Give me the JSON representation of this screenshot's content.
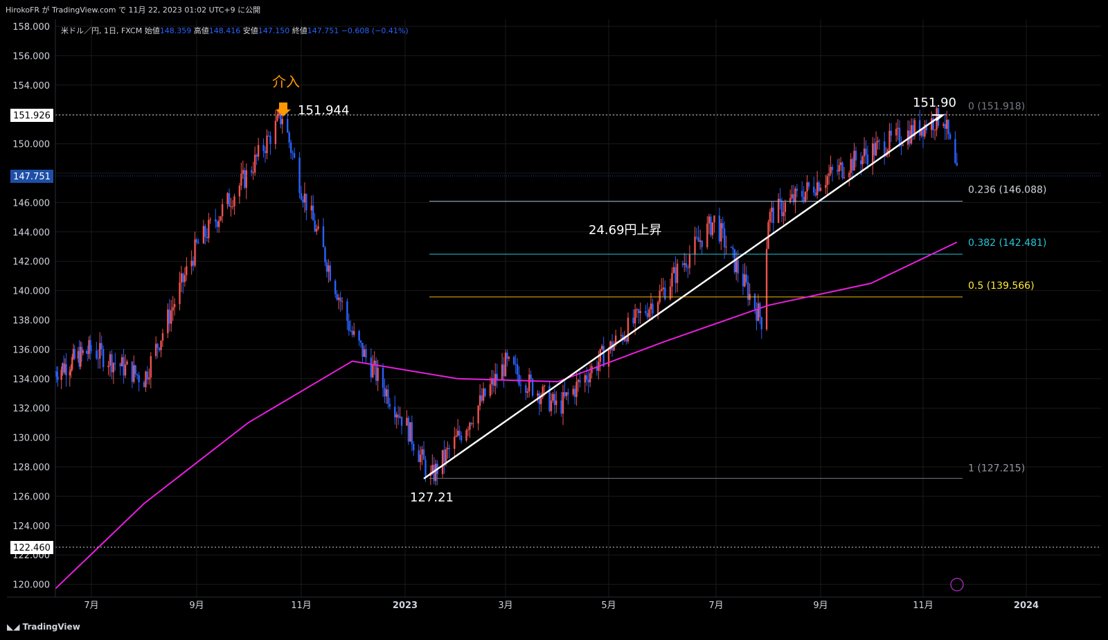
{
  "header": {
    "attribution": "HirokoFR が TradingView.com で 11月 22, 2023 01:02 UTC+9 に公開"
  },
  "legend": {
    "symbol": "米ドル／円, 1日, FXCM",
    "open_label": "始値",
    "open": "148.359",
    "high_label": "高値",
    "high": "148.416",
    "low_label": "安値",
    "low": "147.150",
    "close_label": "終値",
    "close": "147.751",
    "change": "−0.608 (−0.41%)"
  },
  "footer": {
    "brand": "TradingView"
  },
  "colors": {
    "up": "#ef5350",
    "down": "#2962ff",
    "ma": "#e91fe0",
    "fib_236": "#9ab4d4",
    "fib_382": "#26c6da",
    "fib_05": "#f0b90b",
    "fib_1": "#787b86",
    "last_price": "#1e4fa8",
    "annotation_orange": "#ff9800"
  },
  "chart_data": {
    "type": "line",
    "title": "米ドル／円, 1日, FXCM",
    "y_ticks": [
      "158.000",
      "156.000",
      "154.000",
      "152.000",
      "150.000",
      "148.000",
      "146.000",
      "144.000",
      "142.000",
      "140.000",
      "138.000",
      "136.000",
      "134.000",
      "132.000",
      "130.000",
      "128.000",
      "126.000",
      "124.000",
      "122.000",
      "120.000"
    ],
    "ylim": [
      119.5,
      158.5
    ],
    "x_ticks": [
      "7月",
      "9月",
      "11月",
      "2023",
      "3月",
      "5月",
      "7月",
      "9月",
      "11月",
      "2024"
    ],
    "price_labels": {
      "hline_top": "151.926",
      "last": "147.751",
      "hline_bottom": "122.460"
    },
    "series": [
      {
        "name": "",
        "x": [
          "2022-06",
          "2022-07",
          "2022-08",
          "2022-09",
          "2022-10",
          "2022-10-21",
          "2022-11",
          "2022-12",
          "2023-01",
          "2023-01-16",
          "2023-02",
          "2023-03",
          "2023-04",
          "2023-05",
          "2023-06",
          "2023-06-30",
          "2023-07-28",
          "2023-08",
          "2023-09",
          "2023-10",
          "2023-11-13",
          "2023-11-21"
        ],
        "values": [
          134.5,
          136,
          134,
          143,
          148,
          151.94,
          147,
          137,
          131,
          127.21,
          130,
          135,
          132,
          136,
          140,
          144.8,
          138,
          145,
          147.5,
          149.5,
          151.9,
          147.75
        ]
      },
      {
        "name": "",
        "x": [
          "2022-06",
          "2022-08",
          "2022-10",
          "2022-12",
          "2023-02",
          "2023-04",
          "2023-06",
          "2023-08",
          "2023-10",
          "2023-11-21"
        ],
        "values": [
          119.7,
          125.5,
          131,
          135.2,
          134,
          133.8,
          136.5,
          139,
          140.5,
          143.3
        ]
      }
    ],
    "fibonacci": [
      {
        "label": "0 (151.918)",
        "level": 151.918
      },
      {
        "label": "0.236 (146.088)",
        "level": 146.088
      },
      {
        "label": "0.382 (142.481)",
        "level": 142.481
      },
      {
        "label": "0.5 (139.566)",
        "level": 139.566
      },
      {
        "label": "1 (127.215)",
        "level": 127.215
      }
    ],
    "annotations": [
      {
        "text": "介入"
      },
      {
        "text": "151.944"
      },
      {
        "text": "151.90"
      },
      {
        "text": "24.69円上昇"
      },
      {
        "text": "127.21"
      }
    ]
  }
}
